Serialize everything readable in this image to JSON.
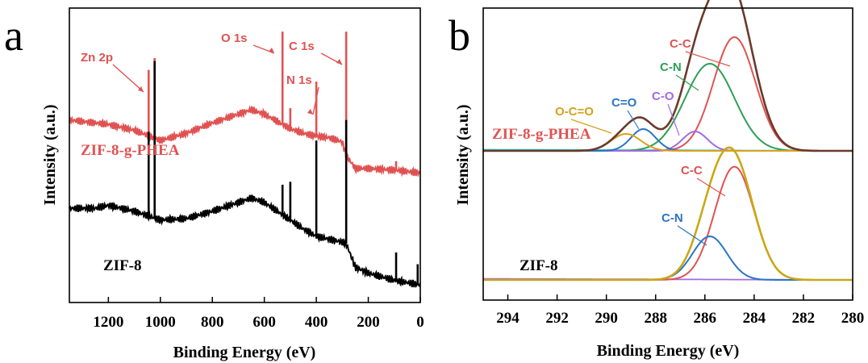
{
  "panels": {
    "a": "a",
    "b": "b"
  },
  "chart_data": [
    {
      "type": "line",
      "panel": "a",
      "xlabel": "Binding Energy (eV)",
      "ylabel": "Intensity (a.u.)",
      "xlim": [
        1350,
        0
      ],
      "x_reversed": true,
      "xticks": [
        1200,
        1000,
        800,
        600,
        400,
        200,
        0
      ],
      "yticks_shown": false,
      "grid": false,
      "series": [
        {
          "name": "ZIF-8-g-PHEA",
          "color": "#e05252",
          "baseline": [
            [
              1350,
              0.62
            ],
            [
              1200,
              0.605
            ],
            [
              1100,
              0.585
            ],
            [
              1000,
              0.55
            ],
            [
              900,
              0.575
            ],
            [
              800,
              0.61
            ],
            [
              700,
              0.64
            ],
            [
              650,
              0.655
            ],
            [
              600,
              0.64
            ],
            [
              550,
              0.615
            ],
            [
              500,
              0.59
            ],
            [
              450,
              0.575
            ],
            [
              400,
              0.565
            ],
            [
              350,
              0.56
            ],
            [
              300,
              0.545
            ],
            [
              285,
              0.5
            ],
            [
              250,
              0.455
            ],
            [
              200,
              0.455
            ],
            [
              100,
              0.45
            ],
            [
              0,
              0.44
            ]
          ],
          "peaks": [
            [
              1045,
              0.79
            ],
            [
              1022,
              0.83
            ],
            [
              530,
              0.92
            ],
            [
              400,
              0.75
            ],
            [
              285,
              0.92
            ],
            [
              500,
              0.66
            ],
            [
              93,
              0.48
            ]
          ]
        },
        {
          "name": "ZIF-8",
          "color": "#000000",
          "baseline": [
            [
              1350,
              0.32
            ],
            [
              1250,
              0.32
            ],
            [
              1200,
              0.33
            ],
            [
              1100,
              0.31
            ],
            [
              1000,
              0.28
            ],
            [
              900,
              0.285
            ],
            [
              800,
              0.31
            ],
            [
              700,
              0.34
            ],
            [
              650,
              0.355
            ],
            [
              600,
              0.34
            ],
            [
              550,
              0.31
            ],
            [
              500,
              0.28
            ],
            [
              450,
              0.25
            ],
            [
              400,
              0.225
            ],
            [
              300,
              0.205
            ],
            [
              285,
              0.2
            ],
            [
              250,
              0.12
            ],
            [
              200,
              0.1
            ],
            [
              100,
              0.075
            ],
            [
              0,
              0.06
            ]
          ],
          "peaks": [
            [
              1045,
              0.58
            ],
            [
              1022,
              0.82
            ],
            [
              400,
              0.55
            ],
            [
              285,
              0.62
            ],
            [
              530,
              0.4
            ],
            [
              500,
              0.41
            ],
            [
              93,
              0.17
            ],
            [
              10,
              0.13
            ]
          ]
        }
      ],
      "annotations": [
        {
          "text": "Zn 2p",
          "x": 1022
        },
        {
          "text": "O 1s",
          "x": 530
        },
        {
          "text": "N 1s",
          "x": 400
        },
        {
          "text": "C 1s",
          "x": 285
        }
      ],
      "sample_labels": [
        "ZIF-8-g-PHEA",
        "ZIF-8"
      ]
    },
    {
      "type": "line",
      "panel": "b",
      "xlabel": "Binding Energy (eV)",
      "ylabel": "Intensity (a.u.)",
      "xlim": [
        295,
        280
      ],
      "x_reversed": true,
      "xticks": [
        294,
        292,
        290,
        288,
        286,
        284,
        282,
        280
      ],
      "yticks_shown": false,
      "grid": false,
      "spectra": [
        {
          "sample": "ZIF-8-g-PHEA",
          "components": [
            {
              "name": "C-C",
              "center": 284.8,
              "height": 0.47,
              "width": 0.85,
              "color": "#e05252"
            },
            {
              "name": "C-N",
              "center": 285.8,
              "height": 0.36,
              "width": 1.0,
              "color": "#2e9e55"
            },
            {
              "name": "C-O",
              "center": 286.4,
              "height": 0.08,
              "width": 0.5,
              "color": "#a26be0"
            },
            {
              "name": "C=O",
              "center": 288.5,
              "height": 0.09,
              "width": 0.5,
              "color": "#2b74c6"
            },
            {
              "name": "O-C=O",
              "center": 289.2,
              "height": 0.07,
              "width": 0.6,
              "color": "#d6a21c"
            }
          ],
          "envelope_color": "#6b3a2a",
          "background_color": "#2bc0c0"
        },
        {
          "sample": "ZIF-8",
          "components": [
            {
              "name": "C-C",
              "center": 284.8,
              "height": 0.52,
              "width": 0.8,
              "color": "#e05252"
            },
            {
              "name": "C-N",
              "center": 285.8,
              "height": 0.2,
              "width": 0.7,
              "color": "#2b74c6"
            }
          ],
          "envelope_color": "#c9a816",
          "background_color": "#a26be0"
        }
      ],
      "sample_labels": [
        "ZIF-8-g-PHEA",
        "ZIF-8"
      ]
    }
  ]
}
